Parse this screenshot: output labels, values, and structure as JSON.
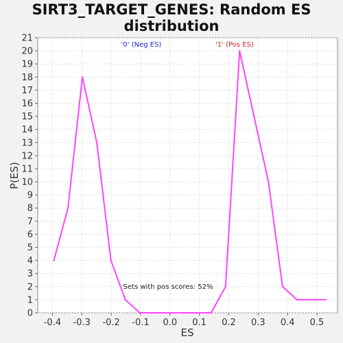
{
  "chart_data": {
    "type": "line",
    "title_line1": "SIRT3_TARGET_GENES: Random ES",
    "title_line2": "distribution",
    "xlabel": "ES",
    "ylabel": "P(ES)",
    "xlim": [
      -0.45,
      0.57
    ],
    "ylim": [
      0,
      21
    ],
    "x_ticks": [
      "-0.4",
      "-0.3",
      "-0.2",
      "-0.1",
      "0.0",
      "0.1",
      "0.2",
      "0.3",
      "0.4",
      "0.5"
    ],
    "x_tick_values": [
      -0.4,
      -0.3,
      -0.2,
      -0.1,
      0.0,
      0.1,
      0.2,
      0.3,
      0.4,
      0.5
    ],
    "y_ticks": [
      0,
      1,
      2,
      3,
      4,
      5,
      6,
      7,
      8,
      9,
      10,
      11,
      12,
      13,
      14,
      15,
      16,
      17,
      18,
      19,
      20,
      21
    ],
    "grid": true,
    "series": [
      {
        "color": "#ff44ff",
        "x": [
          -0.395,
          -0.347,
          -0.298,
          -0.249,
          -0.201,
          -0.152,
          -0.103,
          -0.055,
          -0.006,
          0.043,
          0.091,
          0.14,
          0.189,
          0.237,
          0.286,
          0.335,
          0.383,
          0.432,
          0.481,
          0.529
        ],
        "y": [
          4,
          8,
          18,
          13,
          4,
          1,
          0,
          0,
          0,
          0,
          0,
          0,
          2,
          20,
          15,
          10,
          2,
          1,
          1,
          1
        ]
      }
    ],
    "annotations": {
      "neg": {
        "text": "'0' (Neg ES)",
        "color": "#2222cc"
      },
      "pos": {
        "text": "'1' (Pos ES)",
        "color": "#dd2222"
      },
      "sets": {
        "text": "Sets with pos scores: 52%",
        "color": "#222222"
      }
    }
  }
}
